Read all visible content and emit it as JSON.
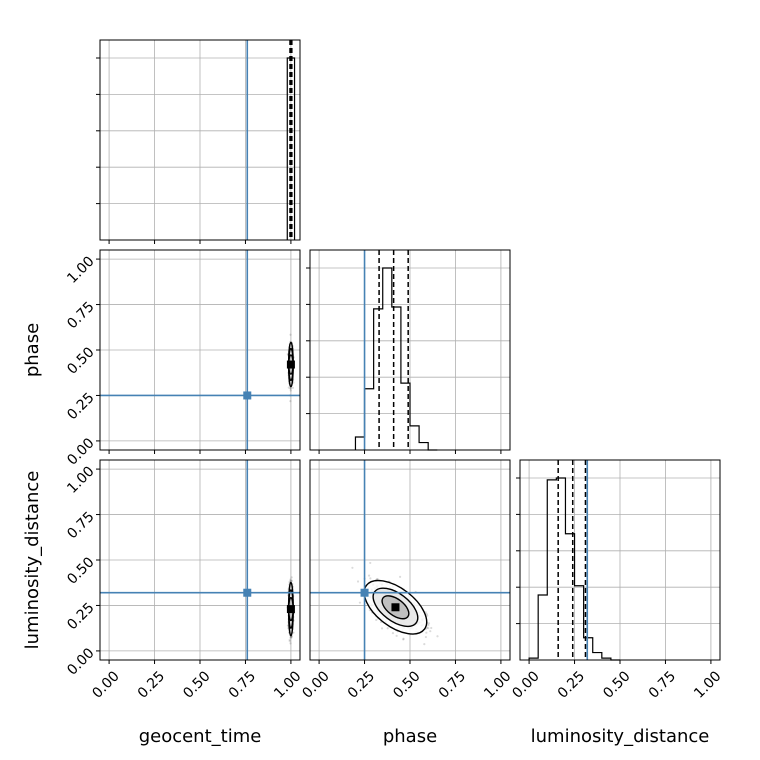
{
  "chart_data": {
    "type": "corner",
    "parameters": [
      "geocent_time",
      "phase",
      "luminosity_distance"
    ],
    "axis_ticks": [
      "0.00",
      "0.25",
      "0.50",
      "0.75",
      "1.00"
    ],
    "axis_tick_values": [
      0,
      0.25,
      0.5,
      0.75,
      1
    ],
    "axis_range": [
      -0.05,
      1.05
    ],
    "grid": true,
    "truths": {
      "geocent_time": 0.76,
      "phase": 0.25,
      "luminosity_distance": 0.32
    },
    "truth_color": "#4682b4",
    "diagonal": [
      {
        "name": "geocent_time",
        "bins": [
          0.98,
          1.02
        ],
        "counts": [
          1.0
        ],
        "quantiles": [
          0.995,
          1.0,
          1.005
        ]
      },
      {
        "name": "phase",
        "bins": [
          0.2,
          0.25,
          0.3,
          0.35,
          0.4,
          0.45,
          0.5,
          0.55,
          0.6,
          0.65
        ],
        "counts": [
          0.07,
          0.33,
          0.76,
          0.98,
          0.77,
          0.36,
          0.13,
          0.04,
          0.0
        ],
        "quantiles": [
          0.33,
          0.41,
          0.49
        ]
      },
      {
        "name": "luminosity_distance",
        "bins": [
          0.0,
          0.05,
          0.1,
          0.15,
          0.2,
          0.25,
          0.3,
          0.35,
          0.4,
          0.45,
          0.5
        ],
        "counts": [
          0.01,
          0.35,
          0.97,
          0.98,
          0.68,
          0.4,
          0.12,
          0.04,
          0.01,
          0.0
        ],
        "quantiles": [
          0.16,
          0.24,
          0.31
        ]
      }
    ],
    "scatter": [
      {
        "x": "geocent_time",
        "y": "phase",
        "center": [
          1.0,
          0.42
        ],
        "sigma": [
          0.005,
          0.05
        ],
        "corr": 0.0
      },
      {
        "x": "geocent_time",
        "y": "luminosity_distance",
        "center": [
          1.0,
          0.23
        ],
        "sigma": [
          0.005,
          0.06
        ],
        "corr": 0.0
      },
      {
        "x": "phase",
        "y": "luminosity_distance",
        "center": [
          0.42,
          0.24
        ],
        "sigma": [
          0.07,
          0.06
        ],
        "corr": -0.55
      }
    ]
  }
}
